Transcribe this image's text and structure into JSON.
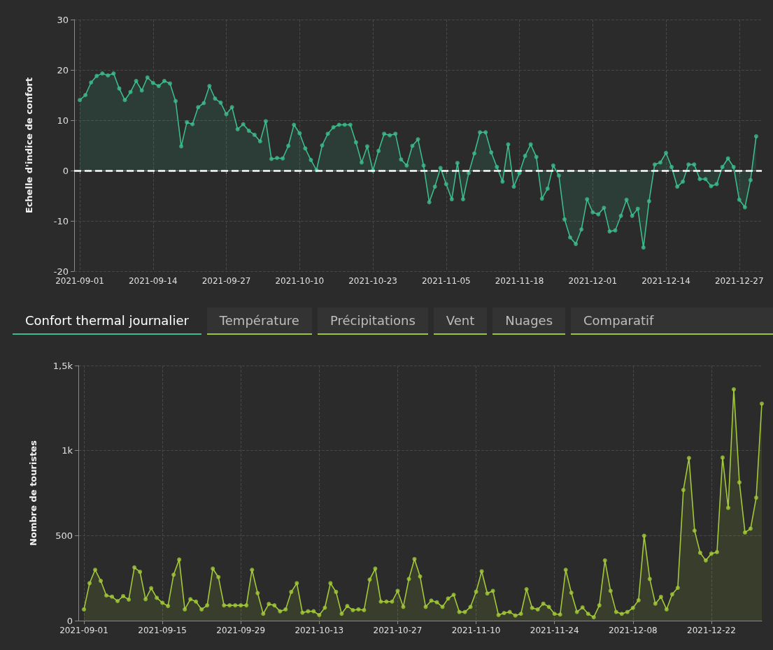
{
  "chart_data": [
    {
      "type": "area",
      "ylabel": "Echelle d'indice de confort",
      "color": "#3dbb8c",
      "marker": "circle",
      "grid": true,
      "x": [
        "2021-09-01",
        "2021-09-02",
        "2021-09-03",
        "2021-09-04",
        "2021-09-05",
        "2021-09-06",
        "2021-09-07",
        "2021-09-08",
        "2021-09-09",
        "2021-09-10",
        "2021-09-11",
        "2021-09-12",
        "2021-09-13",
        "2021-09-14",
        "2021-09-15",
        "2021-09-16",
        "2021-09-17",
        "2021-09-18",
        "2021-09-19",
        "2021-09-20",
        "2021-09-21",
        "2021-09-22",
        "2021-09-23",
        "2021-09-24",
        "2021-09-25",
        "2021-09-26",
        "2021-09-27",
        "2021-09-28",
        "2021-09-29",
        "2021-09-30",
        "2021-10-01",
        "2021-10-02",
        "2021-10-03",
        "2021-10-04",
        "2021-10-05",
        "2021-10-06",
        "2021-10-07",
        "2021-10-08",
        "2021-10-09",
        "2021-10-10",
        "2021-10-11",
        "2021-10-12",
        "2021-10-13",
        "2021-10-14",
        "2021-10-15",
        "2021-10-16",
        "2021-10-17",
        "2021-10-18",
        "2021-10-19",
        "2021-10-20",
        "2021-10-21",
        "2021-10-22",
        "2021-10-23",
        "2021-10-24",
        "2021-10-25",
        "2021-10-26",
        "2021-10-27",
        "2021-10-28",
        "2021-10-29",
        "2021-10-30",
        "2021-10-31",
        "2021-11-01",
        "2021-11-02",
        "2021-11-03",
        "2021-11-04",
        "2021-11-05",
        "2021-11-06",
        "2021-11-07",
        "2021-11-08",
        "2021-11-09",
        "2021-11-10",
        "2021-11-11",
        "2021-11-12",
        "2021-11-13",
        "2021-11-14",
        "2021-11-15",
        "2021-11-16",
        "2021-11-17",
        "2021-11-18",
        "2021-11-19",
        "2021-11-20",
        "2021-11-21",
        "2021-11-22",
        "2021-11-23",
        "2021-11-24",
        "2021-11-25",
        "2021-11-26",
        "2021-11-27",
        "2021-11-28",
        "2021-11-29",
        "2021-11-30",
        "2021-12-01",
        "2021-12-02",
        "2021-12-03",
        "2021-12-04",
        "2021-12-05",
        "2021-12-06",
        "2021-12-07",
        "2021-12-08",
        "2021-12-09",
        "2021-12-10",
        "2021-12-11",
        "2021-12-12",
        "2021-12-13",
        "2021-12-14",
        "2021-12-15",
        "2021-12-16",
        "2021-12-17",
        "2021-12-18",
        "2021-12-19",
        "2021-12-20",
        "2021-12-21",
        "2021-12-22",
        "2021-12-23",
        "2021-12-24",
        "2021-12-25",
        "2021-12-26",
        "2021-12-27",
        "2021-12-28",
        "2021-12-29",
        "2021-12-30"
      ],
      "values": [
        14,
        15,
        17.5,
        18.8,
        19.3,
        18.9,
        19.3,
        16.3,
        14,
        15.6,
        17.8,
        15.9,
        18.5,
        17.4,
        16.8,
        17.8,
        17.3,
        13.8,
        4.8,
        9.6,
        9.2,
        12.6,
        13.4,
        16.8,
        14.3,
        13.5,
        11.2,
        12.6,
        8.2,
        9.2,
        7.9,
        7.1,
        5.8,
        9.8,
        2.3,
        2.5,
        2.4,
        4.9,
        9.1,
        7.4,
        4.4,
        2.1,
        0.1,
        5,
        7.3,
        8.6,
        9.1,
        9.1,
        9.1,
        5.6,
        1.6,
        4.8,
        0,
        3.9,
        7.3,
        7,
        7.3,
        2.2,
        1,
        4.9,
        6.2,
        1,
        -6.3,
        -3.2,
        0.5,
        -2.7,
        -5.7,
        1.5,
        -5.7,
        -0.5,
        3.4,
        7.6,
        7.6,
        3.6,
        0.7,
        -2.2,
        5.2,
        -3.2,
        -0.5,
        2.9,
        5.2,
        2.7,
        -5.6,
        -3.6,
        1,
        -1,
        -9.7,
        -13.3,
        -14.6,
        -11.7,
        -5.7,
        -8.3,
        -8.7,
        -7.4,
        -12.1,
        -11.9,
        -9,
        -5.8,
        -9,
        -7.6,
        -15.3,
        -6.1,
        1.2,
        1.6,
        3.5,
        0.7,
        -3.2,
        -2.2,
        1.2,
        1.2,
        -1.7,
        -1.7,
        -3.1,
        -2.7,
        0.7,
        2.4,
        0.7,
        -5.8,
        -7.3,
        -1.9,
        6.8
      ],
      "xlim": [
        "2021-08-31",
        "2021-12-31"
      ],
      "xticks": [
        "2021-09-01",
        "2021-09-14",
        "2021-09-27",
        "2021-10-10",
        "2021-10-23",
        "2021-11-05",
        "2021-11-18",
        "2021-12-01",
        "2021-12-14",
        "2021-12-27"
      ],
      "ylim": [
        -20,
        30
      ],
      "yticks": [
        -20,
        -10,
        0,
        10,
        20,
        30
      ],
      "ref_lines": [
        {
          "axis": "y",
          "value": 0,
          "color": "#ffffff",
          "line_style": "dashed"
        }
      ]
    },
    {
      "type": "other",
      "annotations": [
        "Confort thermal journalier",
        "Température",
        "Précipitations",
        "Vent",
        "Nuages",
        "Comparatif"
      ]
    },
    {
      "type": "area",
      "ylabel": "Nombre de touristes",
      "color": "#a3c93a",
      "marker": "circle",
      "grid": true,
      "x": [
        "2021-09-01",
        "2021-09-02",
        "2021-09-03",
        "2021-09-04",
        "2021-09-05",
        "2021-09-06",
        "2021-09-07",
        "2021-09-08",
        "2021-09-09",
        "2021-09-10",
        "2021-09-11",
        "2021-09-12",
        "2021-09-13",
        "2021-09-14",
        "2021-09-15",
        "2021-09-16",
        "2021-09-17",
        "2021-09-18",
        "2021-09-19",
        "2021-09-20",
        "2021-09-21",
        "2021-09-22",
        "2021-09-23",
        "2021-09-24",
        "2021-09-25",
        "2021-09-26",
        "2021-09-27",
        "2021-09-28",
        "2021-09-29",
        "2021-09-30",
        "2021-10-01",
        "2021-10-02",
        "2021-10-03",
        "2021-10-04",
        "2021-10-05",
        "2021-10-06",
        "2021-10-07",
        "2021-10-08",
        "2021-10-09",
        "2021-10-10",
        "2021-10-11",
        "2021-10-12",
        "2021-10-13",
        "2021-10-14",
        "2021-10-15",
        "2021-10-16",
        "2021-10-17",
        "2021-10-18",
        "2021-10-19",
        "2021-10-20",
        "2021-10-21",
        "2021-10-22",
        "2021-10-23",
        "2021-10-24",
        "2021-10-25",
        "2021-10-26",
        "2021-10-27",
        "2021-10-28",
        "2021-10-29",
        "2021-10-30",
        "2021-10-31",
        "2021-11-01",
        "2021-11-02",
        "2021-11-03",
        "2021-11-04",
        "2021-11-05",
        "2021-11-06",
        "2021-11-07",
        "2021-11-08",
        "2021-11-09",
        "2021-11-10",
        "2021-11-11",
        "2021-11-12",
        "2021-11-13",
        "2021-11-14",
        "2021-11-15",
        "2021-11-16",
        "2021-11-17",
        "2021-11-18",
        "2021-11-19",
        "2021-11-20",
        "2021-11-21",
        "2021-11-22",
        "2021-11-23",
        "2021-11-24",
        "2021-11-25",
        "2021-11-26",
        "2021-11-27",
        "2021-11-28",
        "2021-11-29",
        "2021-11-30",
        "2021-12-01",
        "2021-12-02",
        "2021-12-03",
        "2021-12-04",
        "2021-12-05",
        "2021-12-06",
        "2021-12-07",
        "2021-12-08",
        "2021-12-09",
        "2021-12-10",
        "2021-12-11",
        "2021-12-12",
        "2021-12-13",
        "2021-12-14",
        "2021-12-15",
        "2021-12-16",
        "2021-12-17",
        "2021-12-18",
        "2021-12-19",
        "2021-12-20",
        "2021-12-21",
        "2021-12-22",
        "2021-12-23",
        "2021-12-24",
        "2021-12-25",
        "2021-12-26",
        "2021-12-27",
        "2021-12-28",
        "2021-12-29",
        "2021-12-30",
        "2021-12-31"
      ],
      "values": [
        66,
        220,
        299,
        234,
        148,
        141,
        115,
        144,
        124,
        313,
        287,
        126,
        191,
        134,
        105,
        86,
        270,
        359,
        66,
        126,
        112,
        66,
        90,
        306,
        256,
        90,
        90,
        90,
        90,
        90,
        299,
        162,
        40,
        98,
        90,
        55,
        66,
        169,
        220,
        47,
        55,
        55,
        33,
        76,
        220,
        169,
        40,
        86,
        62,
        66,
        62,
        241,
        306,
        112,
        112,
        112,
        175,
        81,
        245,
        362,
        260,
        81,
        118,
        108,
        81,
        130,
        152,
        51,
        51,
        81,
        170,
        290,
        160,
        175,
        33,
        45,
        51,
        30,
        40,
        185,
        75,
        66,
        100,
        81,
        40,
        36,
        299,
        164,
        51,
        78,
        40,
        20,
        90,
        354,
        175,
        51,
        40,
        51,
        75,
        120,
        499,
        245,
        100,
        140,
        66,
        155,
        193,
        768,
        956,
        529,
        399,
        354,
        394,
        403,
        959,
        663,
        1360,
        813,
        518,
        541,
        723,
        1276
      ],
      "xlim": [
        "2021-08-31",
        "2021-12-31"
      ],
      "xticks": [
        "2021-09-01",
        "2021-09-15",
        "2021-09-29",
        "2021-10-13",
        "2021-10-27",
        "2021-11-10",
        "2021-11-24",
        "2021-12-08",
        "2021-12-22"
      ],
      "ylim": [
        0,
        1500
      ],
      "yticks": [
        0,
        500,
        {
          "value": 1000,
          "label": "1k"
        },
        {
          "value": 1500,
          "label": "1,5k"
        }
      ]
    }
  ]
}
